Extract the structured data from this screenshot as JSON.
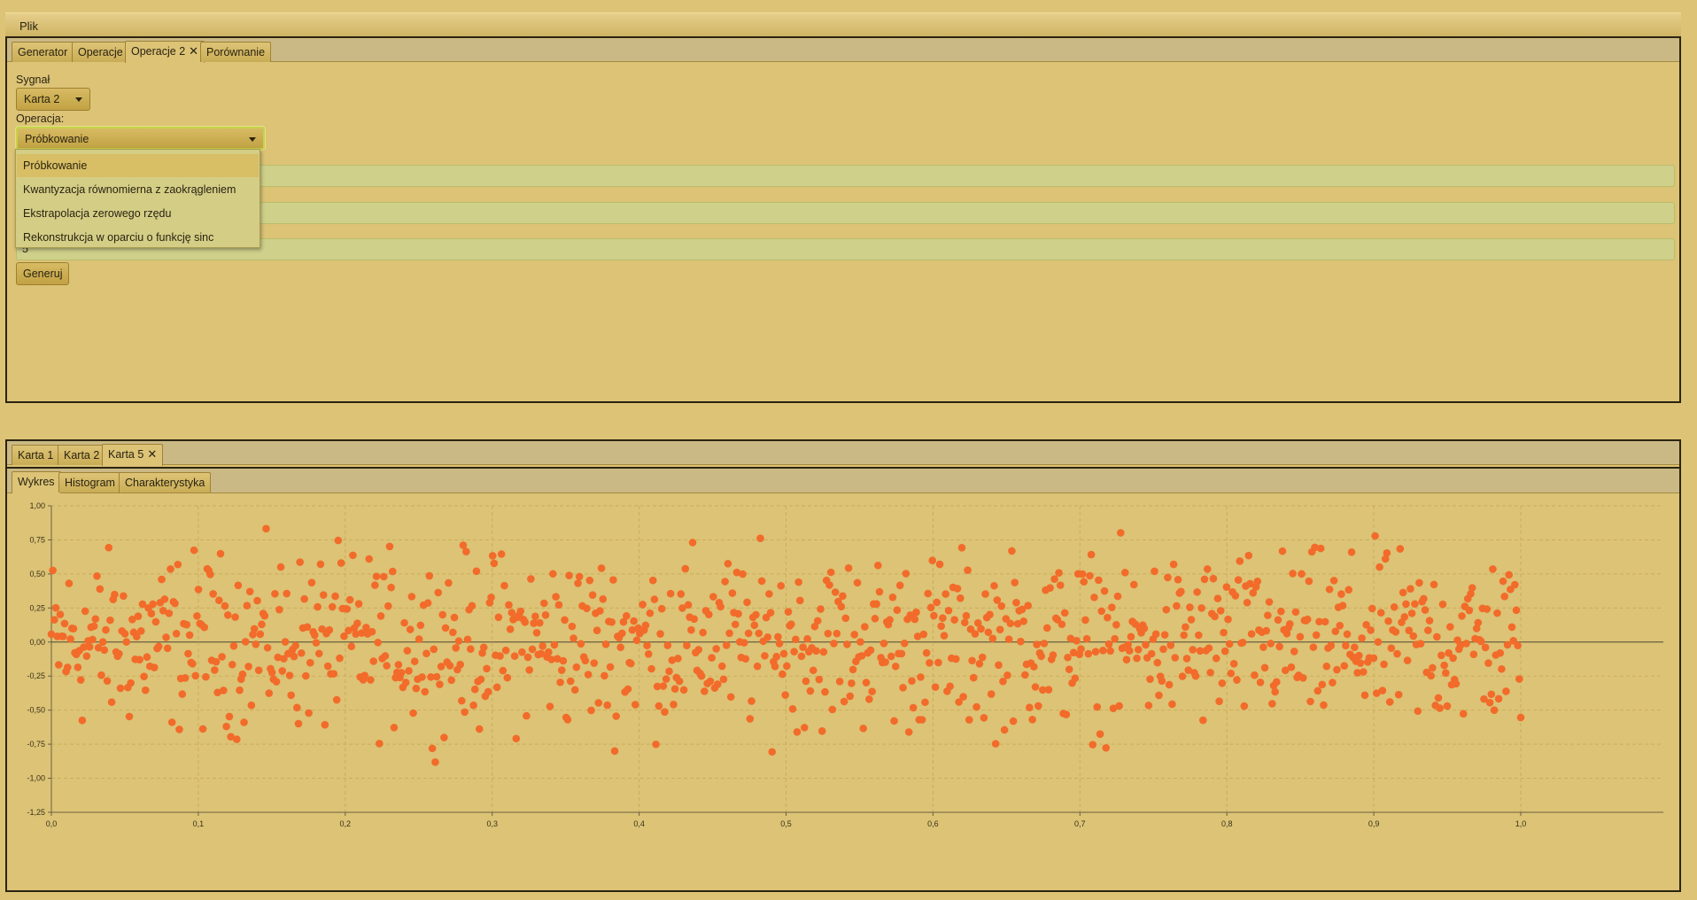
{
  "menubar": {
    "file_label": "Plik"
  },
  "top_tabs": [
    {
      "label": "Generator",
      "closable": false,
      "selected": false
    },
    {
      "label": "Operacje",
      "closable": false,
      "selected": false
    },
    {
      "label": "Operacje 2",
      "closable": true,
      "selected": true
    },
    {
      "label": "Porównanie",
      "closable": false,
      "selected": false
    }
  ],
  "form": {
    "signal_label": "Sygnał",
    "signal_value": "Karta 2",
    "operation_label": "Operacja:",
    "operation_value": "Próbkowanie",
    "field1_value": "",
    "field2_value": "",
    "field3_value": "5",
    "generate_label": "Generuj"
  },
  "operation_options": [
    "Próbkowanie",
    "Kwantyzacja równomierna z zaokrągleniem",
    "Ekstrapolacja zerowego rzędu",
    "Rekonstrukcja w oparciu o funkcję sinc"
  ],
  "bottom_tabs": [
    {
      "label": "Karta 1",
      "closable": false,
      "selected": false
    },
    {
      "label": "Karta 2",
      "closable": false,
      "selected": false
    },
    {
      "label": "Karta 5",
      "closable": true,
      "selected": true
    }
  ],
  "view_tabs": [
    {
      "label": "Wykres",
      "selected": true
    },
    {
      "label": "Histogram",
      "selected": false
    },
    {
      "label": "Charakterystyka",
      "selected": false
    }
  ],
  "icons": {
    "close": "close-icon",
    "dropdown": "chevron-down-icon"
  },
  "chart_data": {
    "type": "scatter",
    "title": "",
    "xlabel": "",
    "ylabel": "",
    "xlim": [
      0.0,
      1.0
    ],
    "ylim": [
      -1.25,
      1.0
    ],
    "x_ticks": [
      "0,0",
      "0,1",
      "0,2",
      "0,3",
      "0,4",
      "0,5",
      "0,6",
      "0,7",
      "0,8",
      "0,9",
      "1,0"
    ],
    "y_ticks": [
      "1,00",
      "0,75",
      "0,50",
      "0,25",
      "0,00",
      "-0,25",
      "-0,50",
      "-0,75",
      "-1,00",
      "-1,25"
    ],
    "grid": true,
    "point_color": "#f26b2a",
    "approx_point_count": 1000,
    "noise_distribution": "zero-mean noise, roughly within [-1.05, 0.93]"
  }
}
